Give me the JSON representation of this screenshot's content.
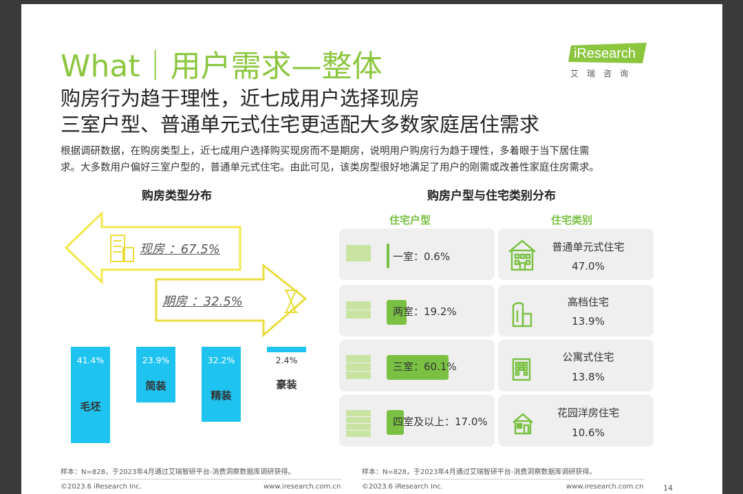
{
  "header": {
    "title": "What｜用户需求—整体",
    "logo_text": "iResearch",
    "logo_sub": "艾瑞咨询"
  },
  "subtitle": {
    "line1": "购房行为趋于理性，近七成用户选择现房",
    "line2": "三室户型、普通单元式住宅更适配大多数家庭居住需求"
  },
  "description": {
    "line1": "根据调研数据，在购房类型上，近七成用户选择购买现房而不是期房，说明用户购房行为趋于理性，多着眼于当下居住需",
    "line2": "求。大多数用户偏好三室户型的，普通单元式住宅。由此可见，该类房型很好地满足了用户的刚需或改善性家庭住房需求。"
  },
  "left_chart": {
    "title": "购房类型分布",
    "arrows": [
      {
        "label": "现房 ：67.5%",
        "icon": "building-icon"
      },
      {
        "label": "期房 ：32.5%",
        "icon": "hourglass-icon"
      }
    ]
  },
  "right_chart": {
    "title": "购房户型与住宅类别分布",
    "col_type": "住宅户型",
    "col_category": "住宅类别",
    "room_types": [
      {
        "label": "一室：0.6%",
        "value": 0.6
      },
      {
        "label": "两室：19.2%",
        "value": 19.2
      },
      {
        "label": "三室：60.1%",
        "value": 60.1
      },
      {
        "label": "四室及以上：17.0%",
        "value": 17.0
      }
    ],
    "categories": [
      {
        "name": "普通单元式住宅",
        "value": "47.0%",
        "icon": "apartment-building-icon"
      },
      {
        "name": "高档住宅",
        "value": "13.9%",
        "icon": "tower-icon"
      },
      {
        "name": "公寓式住宅",
        "value": "13.8%",
        "icon": "office-building-icon"
      },
      {
        "name": "花园洋房住宅",
        "value": "10.6%",
        "icon": "house-icon"
      }
    ]
  },
  "chart_data": {
    "type": "bar",
    "categories": [
      "毛坯",
      "简装",
      "精装",
      "豪装"
    ],
    "values": [
      41.4,
      23.9,
      32.2,
      2.4
    ],
    "value_labels": [
      "41.4%",
      "23.9%",
      "32.2%",
      "2.4%"
    ],
    "title": "",
    "xlabel": "",
    "ylabel": "",
    "ylim": [
      0,
      41.4
    ],
    "color": "#1ec3f0"
  },
  "footnotes": {
    "left": "样本：N=828，于2023年4月通过艾瑞智研平台-消费洞察数据库调研获得。",
    "right": "样本：N=828，于2023年4月通过艾瑞智研平台-消费洞察数据库调研获得。"
  },
  "footer": {
    "copyright_left": "©2023.6 iResearch Inc.",
    "url_left": "www.iresearch.com.cn",
    "copyright_right": "©2023.6 iResearch Inc.",
    "url_right": "www.iresearch.com.cn",
    "page": "14"
  },
  "colors": {
    "accent_green": "#8cc63f",
    "bar_green": "#7ac143",
    "light_green": "#c9e3a3",
    "yellow": "#f2e84a",
    "blue": "#1ec3f0"
  }
}
